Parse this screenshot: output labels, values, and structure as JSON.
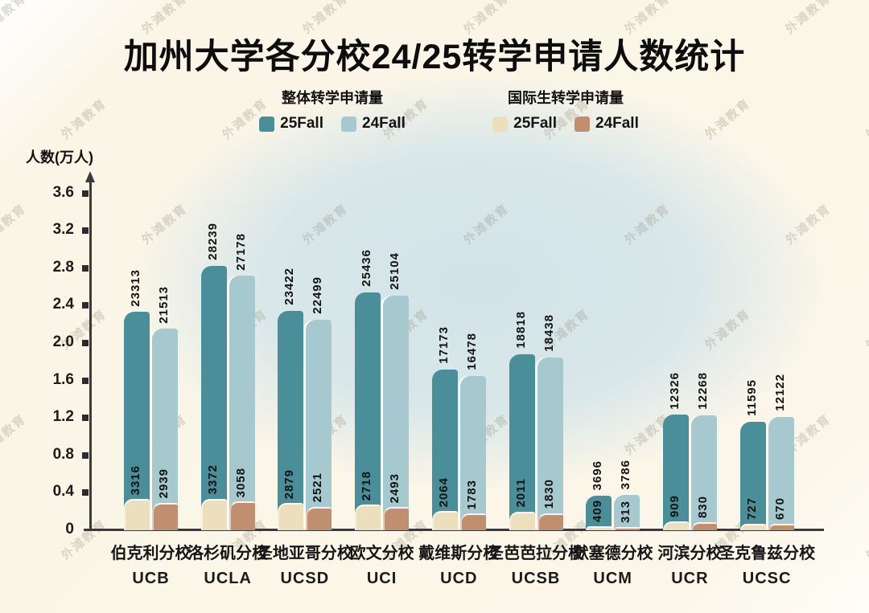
{
  "title": "加州大学各分校24/25转学申请人数统计",
  "watermark": "外滩教育",
  "legend": {
    "overall": {
      "label": "整体转学申请量",
      "items": [
        {
          "label": "25Fall",
          "color": "#4a8e9a"
        },
        {
          "label": "24Fall",
          "color": "#a5c9cf"
        }
      ]
    },
    "international": {
      "label": "国际生转学申请量",
      "items": [
        {
          "label": "25Fall",
          "color": "#ebdfbe"
        },
        {
          "label": "24Fall",
          "color": "#c08f6f"
        }
      ]
    }
  },
  "chart_data": {
    "type": "bar",
    "title": "加州大学各分校24/25转学申请人数统计",
    "xlabel": "",
    "ylabel": "人数(万人)",
    "ylim": [
      0,
      3.8
    ],
    "yticks": [
      0,
      0.4,
      0.8,
      1.2,
      1.6,
      2.0,
      2.4,
      2.8,
      3.2,
      3.6
    ],
    "unit_per_axis_step": 10000,
    "grid": false,
    "legend_position": "top",
    "categories": [
      {
        "zh": "伯克利分校",
        "en": "UCB"
      },
      {
        "zh": "洛杉矶分校",
        "en": "UCLA"
      },
      {
        "zh": "圣地亚哥分校",
        "en": "UCSD"
      },
      {
        "zh": "欧文分校",
        "en": "UCI"
      },
      {
        "zh": "戴维斯分校",
        "en": "UCD"
      },
      {
        "zh": "圣芭芭拉分校",
        "en": "UCSB"
      },
      {
        "zh": "默塞德分校",
        "en": "UCM"
      },
      {
        "zh": "河滨分校",
        "en": "UCR"
      },
      {
        "zh": "圣克鲁兹分校",
        "en": "UCSC"
      }
    ],
    "series": [
      {
        "name": "整体转学申请量 25Fall",
        "color": "#4a8e9a",
        "values": [
          23313,
          28239,
          23422,
          25436,
          17173,
          18818,
          3696,
          12326,
          11595
        ]
      },
      {
        "name": "整体转学申请量 24Fall",
        "color": "#a5c9cf",
        "values": [
          21513,
          27178,
          22499,
          25104,
          16478,
          18438,
          3786,
          12268,
          12122
        ]
      },
      {
        "name": "国际生转学申请量 25Fall",
        "color": "#ebdfbe",
        "values": [
          3316,
          3372,
          2879,
          2718,
          2064,
          2011,
          409,
          909,
          727
        ]
      },
      {
        "name": "国际生转学申请量 24Fall",
        "color": "#c08f6f",
        "values": [
          2939,
          3058,
          2521,
          2493,
          1783,
          1830,
          313,
          830,
          670
        ]
      }
    ]
  }
}
